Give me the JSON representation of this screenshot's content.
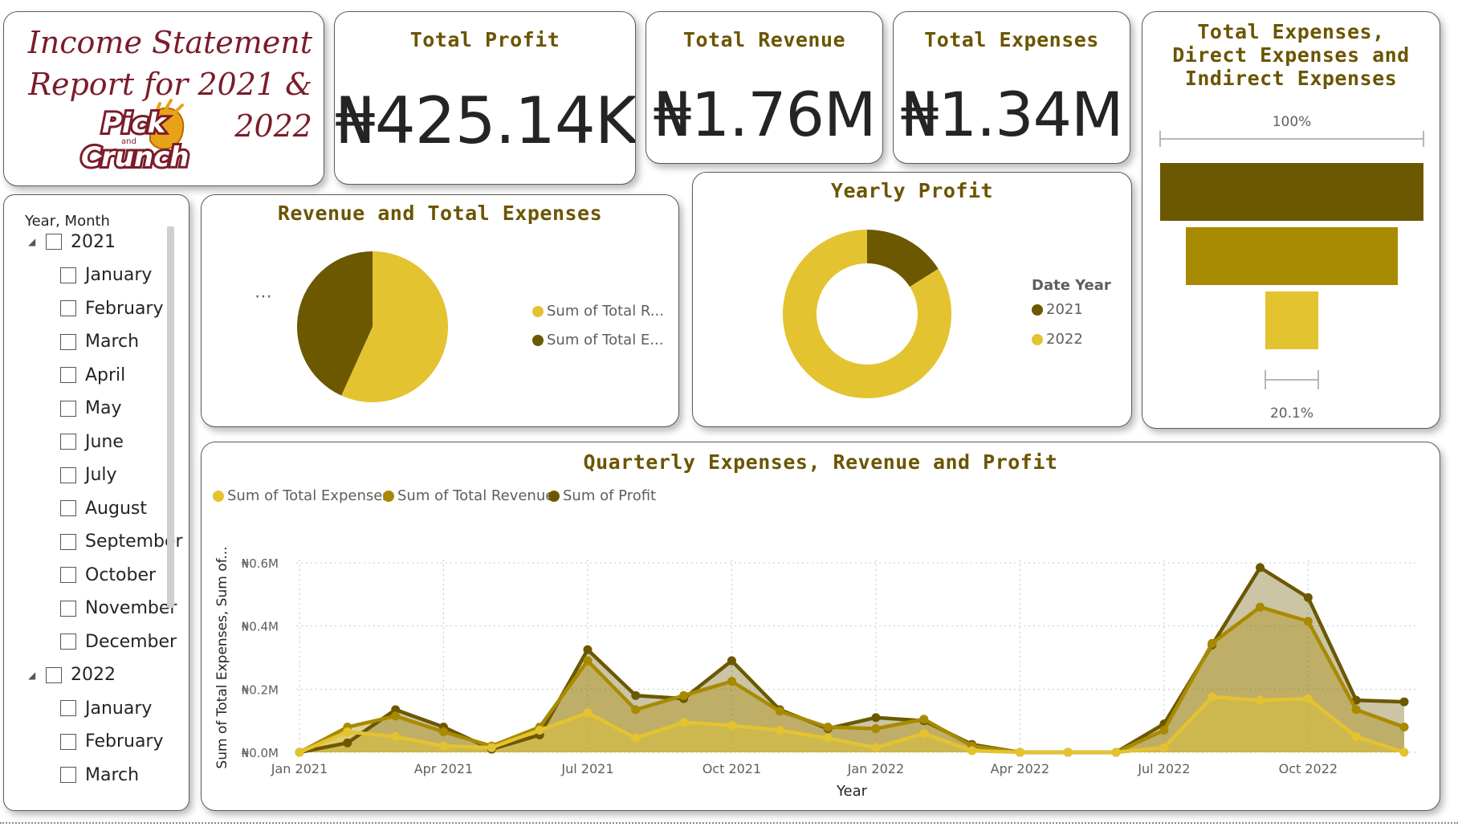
{
  "title_card": {
    "title_line1": "Income Statement",
    "title_line2": "Report for 2021 &",
    "title_line3": "2022",
    "logo_line1": "Pick",
    "logo_line2": "and",
    "logo_line3": "Crunch"
  },
  "kpis": {
    "profit": {
      "title": "Total Profit",
      "value": "₦425.14K"
    },
    "revenue": {
      "title": "Total Revenue",
      "value": "₦1.76M"
    },
    "expenses": {
      "title": "Total Expenses",
      "value": "₦1.34M"
    }
  },
  "slicer": {
    "header": "Year, Month",
    "years": [
      {
        "label": "2021",
        "months": [
          "January",
          "February",
          "March",
          "April",
          "May",
          "June",
          "July",
          "August",
          "September",
          "October",
          "November",
          "December"
        ]
      },
      {
        "label": "2022",
        "months": [
          "January",
          "February",
          "March"
        ]
      }
    ]
  },
  "colors": {
    "dark": "#6b5800",
    "mid": "#a88a00",
    "light": "#e3c330",
    "title": "#6b5500",
    "logo": "#7b1c2a"
  },
  "chart_data": [
    {
      "type": "pie",
      "title": "Revenue and Total Expenses",
      "slices": [
        {
          "label": "Sum of Total R...",
          "value": 1.76,
          "color": "#e3c330"
        },
        {
          "label": "Sum of Total E...",
          "value": 1.34,
          "color": "#6b5800"
        }
      ],
      "legend_position": "right"
    },
    {
      "type": "pie",
      "subtype": "donut",
      "title": "Yearly Profit",
      "legend_title": "Date Year",
      "slices": [
        {
          "label": "2021",
          "value": 16,
          "color": "#6b5800"
        },
        {
          "label": "2022",
          "value": 84,
          "color": "#e3c330"
        }
      ],
      "legend_position": "right"
    },
    {
      "type": "bar",
      "subtype": "funnel",
      "title_line1": "Total Expenses,",
      "title_line2": "Direct Expenses and",
      "title_line3": "Indirect Expenses",
      "top_label": "100%",
      "bottom_label": "20.1%",
      "values": [
        100,
        80,
        20.1
      ],
      "colors": [
        "#6b5800",
        "#a88a00",
        "#e3c330"
      ]
    },
    {
      "type": "area",
      "title": "Quarterly Expenses, Revenue and Profit",
      "xlabel": "Year",
      "ylabel": "Sum of Total Expenses, Sum of...",
      "ylim": [
        0,
        0.6
      ],
      "yticks": [
        "₦0.0M",
        "₦0.2M",
        "₦0.4M",
        "₦0.6M"
      ],
      "ytick_values": [
        0,
        0.2,
        0.4,
        0.6
      ],
      "xticks": [
        "Jan 2021",
        "Apr 2021",
        "Jul 2021",
        "Oct 2021",
        "Jan 2022",
        "Apr 2022",
        "Jul 2022",
        "Oct 2022"
      ],
      "xtick_index": [
        0,
        3,
        6,
        9,
        12,
        15,
        18,
        21
      ],
      "legend_position": "top-left",
      "grid": true,
      "series": [
        {
          "name": "Sum of Total Expenses",
          "color": "#e3c330",
          "values": [
            0.0,
            0.065,
            0.05,
            0.02,
            0.015,
            0.07,
            0.125,
            0.045,
            0.095,
            0.085,
            0.07,
            0.045,
            0.015,
            0.06,
            0.005,
            0.0,
            0.0,
            0.0,
            0.015,
            0.175,
            0.165,
            0.17,
            0.05,
            0.0
          ]
        },
        {
          "name": "Sum of Total Revenue",
          "color": "#a88a00",
          "values": [
            0.0,
            0.08,
            0.115,
            0.065,
            0.02,
            0.08,
            0.29,
            0.135,
            0.18,
            0.225,
            0.13,
            0.08,
            0.075,
            0.105,
            0.02,
            0.0,
            0.0,
            0.0,
            0.07,
            0.345,
            0.46,
            0.415,
            0.135,
            0.08
          ]
        },
        {
          "name": "Sum of Profit",
          "color": "#6b5800",
          "values": [
            0.0,
            0.03,
            0.135,
            0.08,
            0.01,
            0.055,
            0.325,
            0.18,
            0.17,
            0.29,
            0.135,
            0.075,
            0.11,
            0.1,
            0.025,
            0.0,
            0.0,
            0.0,
            0.09,
            0.34,
            0.585,
            0.49,
            0.165,
            0.16
          ]
        }
      ]
    }
  ]
}
